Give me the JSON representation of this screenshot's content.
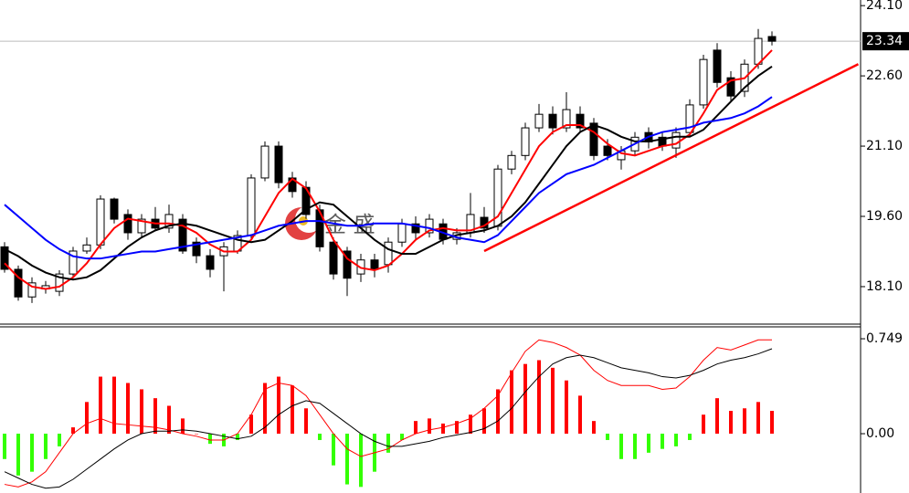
{
  "chart_data": [
    {
      "type": "candlestick",
      "open": [
        18.95,
        18.47,
        17.88,
        18.05,
        18.0,
        18.37,
        18.86,
        18.99,
        19.97,
        19.64,
        19.25,
        19.54,
        19.35,
        19.54,
        19.05,
        18.76,
        18.76,
        18.86,
        19.19,
        20.42,
        21.1,
        20.42,
        20.22,
        19.74,
        19.05,
        18.86,
        18.37,
        18.67,
        18.57,
        19.05,
        19.44,
        19.25,
        19.44,
        19.11,
        19.25,
        19.58,
        19.39,
        20.61,
        20.9,
        21.49,
        21.78,
        21.49,
        21.78,
        21.59,
        21.1,
        20.81,
        21.0,
        21.39,
        21.29,
        21.06,
        21.39,
        21.98,
        23.15,
        22.56,
        22.27,
        22.85,
        23.44
      ],
      "close": [
        18.47,
        17.88,
        18.18,
        18.12,
        18.37,
        18.86,
        18.99,
        19.97,
        19.54,
        19.25,
        19.54,
        19.35,
        19.64,
        18.86,
        18.76,
        18.47,
        18.95,
        19.19,
        20.42,
        21.1,
        20.32,
        20.13,
        19.64,
        18.95,
        18.37,
        18.28,
        18.67,
        18.47,
        19.05,
        19.44,
        19.25,
        19.54,
        19.11,
        19.25,
        19.64,
        19.35,
        20.61,
        20.9,
        21.49,
        21.78,
        21.49,
        21.88,
        21.49,
        20.9,
        20.9,
        21.0,
        21.29,
        21.19,
        21.1,
        21.39,
        21.98,
        22.95,
        22.46,
        22.17,
        22.85,
        23.4,
        23.34
      ],
      "high": [
        19.05,
        18.55,
        18.3,
        18.22,
        18.45,
        18.95,
        19.15,
        20.05,
        20.0,
        19.75,
        19.65,
        19.8,
        19.85,
        19.65,
        19.15,
        18.9,
        19.05,
        19.3,
        20.5,
        21.2,
        21.2,
        20.55,
        20.35,
        19.85,
        19.15,
        18.95,
        18.8,
        18.8,
        19.15,
        19.55,
        19.6,
        19.65,
        19.55,
        19.35,
        20.1,
        19.8,
        20.7,
        21.0,
        21.6,
        22.0,
        21.95,
        22.25,
        21.95,
        21.7,
        21.25,
        21.1,
        21.4,
        21.5,
        21.4,
        21.5,
        22.1,
        23.05,
        23.3,
        22.7,
        22.95,
        23.6,
        23.55
      ],
      "low": [
        18.4,
        17.8,
        17.75,
        17.95,
        17.9,
        18.3,
        18.8,
        18.9,
        19.45,
        19.1,
        19.15,
        19.3,
        19.25,
        18.8,
        18.6,
        18.3,
        18.0,
        18.8,
        19.1,
        20.35,
        20.2,
        20.0,
        19.55,
        18.85,
        18.25,
        17.9,
        18.2,
        18.3,
        18.4,
        18.95,
        19.1,
        19.15,
        19.0,
        19.0,
        19.15,
        19.25,
        19.3,
        20.5,
        20.8,
        21.4,
        21.35,
        21.4,
        21.4,
        20.8,
        20.8,
        20.6,
        20.9,
        21.05,
        21.0,
        20.85,
        21.3,
        21.9,
        22.35,
        22.05,
        22.15,
        22.75,
        23.25
      ],
      "series": [
        {
          "color": "#ff0000",
          "values": [
            18.6,
            18.3,
            18.1,
            18.05,
            18.1,
            18.3,
            18.6,
            19.0,
            19.35,
            19.55,
            19.5,
            19.45,
            19.45,
            19.4,
            19.25,
            19.0,
            18.85,
            18.85,
            19.1,
            19.6,
            20.1,
            20.4,
            20.2,
            19.7,
            19.1,
            18.7,
            18.5,
            18.45,
            18.55,
            18.8,
            19.1,
            19.3,
            19.35,
            19.3,
            19.3,
            19.4,
            19.6,
            20.1,
            20.6,
            21.1,
            21.4,
            21.55,
            21.55,
            21.4,
            21.15,
            20.95,
            20.9,
            21.0,
            21.1,
            21.15,
            21.35,
            21.8,
            22.3,
            22.5,
            22.55,
            22.85,
            23.15
          ]
        },
        {
          "color": "#000000",
          "values": [
            18.9,
            18.75,
            18.55,
            18.4,
            18.3,
            18.25,
            18.3,
            18.45,
            18.7,
            18.95,
            19.15,
            19.3,
            19.4,
            19.45,
            19.4,
            19.3,
            19.2,
            19.1,
            19.05,
            19.1,
            19.3,
            19.5,
            19.75,
            19.9,
            19.85,
            19.6,
            19.35,
            19.1,
            18.9,
            18.8,
            18.8,
            18.95,
            19.1,
            19.2,
            19.25,
            19.3,
            19.4,
            19.6,
            19.9,
            20.3,
            20.7,
            21.1,
            21.4,
            21.55,
            21.45,
            21.3,
            21.2,
            21.2,
            21.25,
            21.3,
            21.3,
            21.45,
            21.75,
            22.05,
            22.35,
            22.6,
            22.8
          ]
        },
        {
          "color": "#0000ff",
          "values": [
            19.85,
            19.6,
            19.35,
            19.1,
            18.9,
            18.75,
            18.7,
            18.7,
            18.75,
            18.8,
            18.85,
            18.85,
            18.9,
            18.95,
            19.0,
            19.05,
            19.1,
            19.15,
            19.2,
            19.3,
            19.4,
            19.45,
            19.5,
            19.5,
            19.45,
            19.4,
            19.4,
            19.45,
            19.45,
            19.45,
            19.4,
            19.35,
            19.25,
            19.15,
            19.1,
            19.05,
            19.2,
            19.5,
            19.8,
            20.1,
            20.3,
            20.5,
            20.6,
            20.7,
            20.85,
            21.0,
            21.15,
            21.3,
            21.4,
            21.45,
            21.5,
            21.6,
            21.65,
            21.7,
            21.8,
            21.95,
            22.15
          ]
        }
      ],
      "trendline": {
        "x": [
          35,
          62.3
        ],
        "y": [
          18.86,
          22.85
        ],
        "color": "#ff0000"
      },
      "current_price": {
        "value": 23.34,
        "label": "23.34"
      },
      "watermark": "金 盛",
      "ylim": [
        17.3,
        24.22
      ],
      "yticks": [
        {
          "value": 24.1,
          "label": "24.10"
        },
        {
          "value": 22.6,
          "label": "22.60"
        },
        {
          "value": 21.1,
          "label": "21.10"
        },
        {
          "value": 19.6,
          "label": "19.60"
        },
        {
          "value": 18.1,
          "label": "18.10"
        }
      ]
    },
    {
      "type": "macd",
      "histogram": [
        -0.2,
        -0.33,
        -0.3,
        -0.2,
        -0.1,
        0.05,
        0.25,
        0.45,
        0.45,
        0.4,
        0.35,
        0.28,
        0.22,
        0.12,
        0.0,
        -0.08,
        -0.1,
        -0.05,
        0.15,
        0.4,
        0.45,
        0.38,
        0.2,
        -0.05,
        -0.25,
        -0.4,
        -0.42,
        -0.3,
        -0.15,
        -0.05,
        0.1,
        0.12,
        0.08,
        0.1,
        0.15,
        0.2,
        0.35,
        0.5,
        0.55,
        0.58,
        0.52,
        0.42,
        0.3,
        0.1,
        -0.05,
        -0.2,
        -0.2,
        -0.15,
        -0.12,
        -0.1,
        -0.05,
        0.15,
        0.28,
        0.18,
        0.2,
        0.25,
        0.18
      ],
      "positive_color": "#ff0000",
      "negative_color": "#33ff00",
      "series": [
        {
          "color": "#ff0000",
          "values": [
            -0.4,
            -0.42,
            -0.38,
            -0.3,
            -0.15,
            0.0,
            0.08,
            0.12,
            0.08,
            0.07,
            0.06,
            0.05,
            0.03,
            0.0,
            -0.02,
            -0.05,
            -0.05,
            0.0,
            0.15,
            0.35,
            0.4,
            0.38,
            0.3,
            0.15,
            0.0,
            -0.12,
            -0.18,
            -0.15,
            -0.12,
            -0.05,
            0.0,
            0.03,
            0.05,
            0.08,
            0.12,
            0.2,
            0.3,
            0.48,
            0.65,
            0.74,
            0.72,
            0.68,
            0.62,
            0.5,
            0.42,
            0.38,
            0.38,
            0.38,
            0.35,
            0.36,
            0.45,
            0.58,
            0.68,
            0.66,
            0.7,
            0.74,
            0.74
          ]
        },
        {
          "color": "#000000",
          "values": [
            -0.3,
            -0.35,
            -0.4,
            -0.43,
            -0.42,
            -0.36,
            -0.28,
            -0.2,
            -0.12,
            -0.05,
            0.0,
            0.02,
            0.02,
            0.03,
            0.02,
            0.0,
            -0.02,
            -0.04,
            -0.02,
            0.05,
            0.15,
            0.22,
            0.26,
            0.24,
            0.16,
            0.08,
            0.0,
            -0.06,
            -0.1,
            -0.1,
            -0.08,
            -0.06,
            -0.03,
            -0.01,
            0.01,
            0.04,
            0.1,
            0.2,
            0.33,
            0.45,
            0.55,
            0.6,
            0.62,
            0.6,
            0.56,
            0.52,
            0.5,
            0.48,
            0.45,
            0.44,
            0.46,
            0.5,
            0.55,
            0.58,
            0.6,
            0.63,
            0.67
          ]
        }
      ],
      "ylim": [
        -0.468,
        0.843
      ],
      "yticks": [
        0.749,
        {
          "value": 0,
          "label": "0.00"
        }
      ]
    }
  ]
}
